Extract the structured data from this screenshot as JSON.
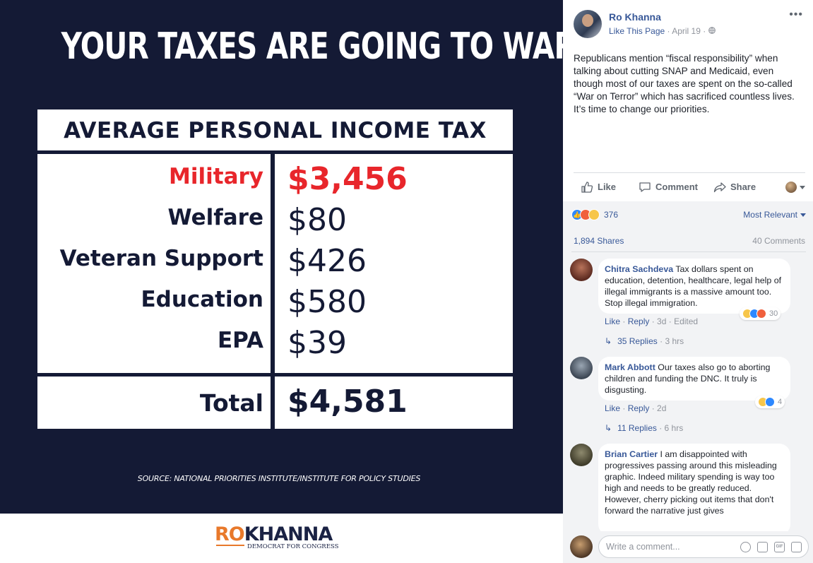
{
  "graphic": {
    "headline": "YOUR TAXES ARE GOING TO WAR",
    "table_title": "AVERAGE PERSONAL INCOME TAX",
    "rows": [
      {
        "label": "Military",
        "value": "$3,456"
      },
      {
        "label": "Welfare",
        "value": "$80"
      },
      {
        "label": "Veteran Support",
        "value": "$426"
      },
      {
        "label": "Education",
        "value": "$580"
      },
      {
        "label": "EPA",
        "value": "$39"
      }
    ],
    "total_label": "Total",
    "total_value": "$4,581",
    "source": "SOURCE: NATIONAL PRIORITIES INSTITUTE/INSTITUTE FOR POLICY STUDIES",
    "logo_ro": "RO",
    "logo_khanna": "KHANNA",
    "logo_sub": "DEMOCRAT FOR CONGRESS",
    "colors": {
      "navy": "#141a35",
      "red": "#e8262b",
      "orange": "#e8792b"
    }
  },
  "post": {
    "page_name": "Ro Khanna",
    "like_page": "Like This Page",
    "date": "April 19",
    "text": "Republicans mention “fiscal responsibility” when talking about cutting SNAP and Medicaid, even though most of our taxes are spent on the so-called “War on Terror” which has sacrificed countless lives. It’s time to change our priorities.",
    "actions": {
      "like": "Like",
      "comment": "Comment",
      "share": "Share"
    },
    "reaction_count": "376",
    "sort_label": "Most Relevant",
    "shares": "1,894 Shares",
    "comments_count": "40 Comments"
  },
  "comments": [
    {
      "name": "Chitra Sachdeva",
      "text": "Tax dollars spent on education, detention, healthcare, legal help of illegal immigrants is a massive amount too. Stop illegal immigration.",
      "like": "Like",
      "reply": "Reply",
      "age": "3d",
      "edited": "Edited",
      "reaction_count": "30",
      "replies_label": "35 Replies",
      "replies_age": "3 hrs"
    },
    {
      "name": "Mark Abbott",
      "text": "Our taxes also go to aborting children and funding the DNC. It truly is disgusting.",
      "like": "Like",
      "reply": "Reply",
      "age": "2d",
      "reaction_count": "4",
      "replies_label": "11 Replies",
      "replies_age": "6 hrs"
    },
    {
      "name": "Brian Cartier",
      "text": "I am disappointed with progressives passing around this misleading graphic. Indeed military spending is way too high and needs to be greatly reduced.",
      "text2": "However, cherry picking out items that don't forward the narrative just gives"
    }
  ],
  "composer": {
    "placeholder": "Write a comment..."
  },
  "icons": [
    "ellipsis-icon",
    "globe-icon",
    "thumbs-up-icon",
    "comment-icon",
    "share-icon",
    "emoji-icon",
    "camera-icon",
    "gif-icon",
    "sticker-icon"
  ]
}
